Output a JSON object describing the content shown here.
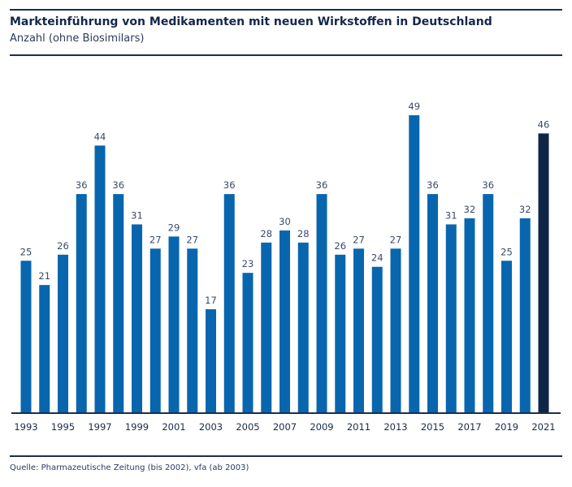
{
  "header": {
    "title": "Markteinführung von Medikamenten mit neuen Wirkstoffen in Deutschland",
    "subtitle": "Anzahl (ohne Biosimilars)"
  },
  "footer": {
    "source": "Quelle: Pharmazeutische Zeitung (bis 2002), vfa (ab 2003)"
  },
  "colors": {
    "bar": "#0866ae",
    "highlight": "#0f2548",
    "axis": "#1b2e4f"
  },
  "chart_data": {
    "type": "bar",
    "title": "Markteinführung von Medikamenten mit neuen Wirkstoffen in Deutschland",
    "subtitle": "Anzahl (ohne Biosimilars)",
    "xlabel": "",
    "ylabel": "",
    "ylim": [
      0,
      49
    ],
    "grid": false,
    "categories": [
      "1993",
      "1994",
      "1995",
      "1996",
      "1997",
      "1998",
      "1999",
      "2000",
      "2001",
      "2002",
      "2003",
      "2004",
      "2005",
      "2006",
      "2007",
      "2008",
      "2009",
      "2010",
      "2011",
      "2012",
      "2013",
      "2014",
      "2015",
      "2016",
      "2017",
      "2018",
      "2019",
      "2020",
      "2021"
    ],
    "values": [
      25,
      21,
      26,
      36,
      44,
      36,
      31,
      27,
      29,
      27,
      17,
      36,
      23,
      28,
      30,
      28,
      36,
      26,
      27,
      24,
      27,
      49,
      36,
      31,
      32,
      36,
      25,
      32,
      46
    ],
    "tick_labels": [
      "1993",
      "1995",
      "1997",
      "1999",
      "2001",
      "2003",
      "2005",
      "2007",
      "2009",
      "2011",
      "2013",
      "2015",
      "2017",
      "2019",
      "2021"
    ],
    "highlighted_category": "2021"
  }
}
